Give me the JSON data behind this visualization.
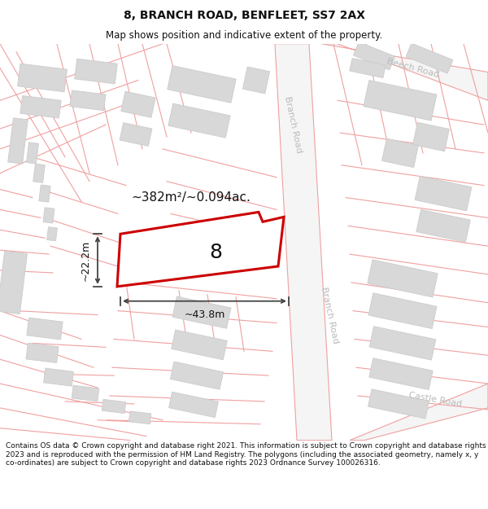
{
  "title": "8, BRANCH ROAD, BENFLEET, SS7 2AX",
  "subtitle": "Map shows position and indicative extent of the property.",
  "footer": "Contains OS data © Crown copyright and database right 2021. This information is subject to Crown copyright and database rights 2023 and is reproduced with the permission of HM Land Registry. The polygons (including the associated geometry, namely x, y co-ordinates) are subject to Crown copyright and database rights 2023 Ordnance Survey 100026316.",
  "map_bg": "#f8f8f8",
  "road_line_color": "#f0a0a0",
  "building_fill": "#d8d8d8",
  "building_stroke": "#cccccc",
  "plot_outline_color": "#cc0000",
  "plot_fill": "#ffffff",
  "dim_color": "#444444",
  "road_label_color": "#bbbbbb",
  "area_text": "~382m²/~0.094ac.",
  "width_text": "~43.8m",
  "height_text": "~22.2m",
  "number_text": "8",
  "beech_road_label": "Beech Road",
  "branch_road_label_top": "Branch Road",
  "branch_road_label_bottom": "Branch Road",
  "castle_road_label": "Castle Road",
  "title_fontsize": 10,
  "subtitle_fontsize": 8.5,
  "footer_fontsize": 6.5,
  "area_fontsize": 11,
  "dim_fontsize": 9,
  "number_fontsize": 18,
  "road_label_fontsize": 8
}
